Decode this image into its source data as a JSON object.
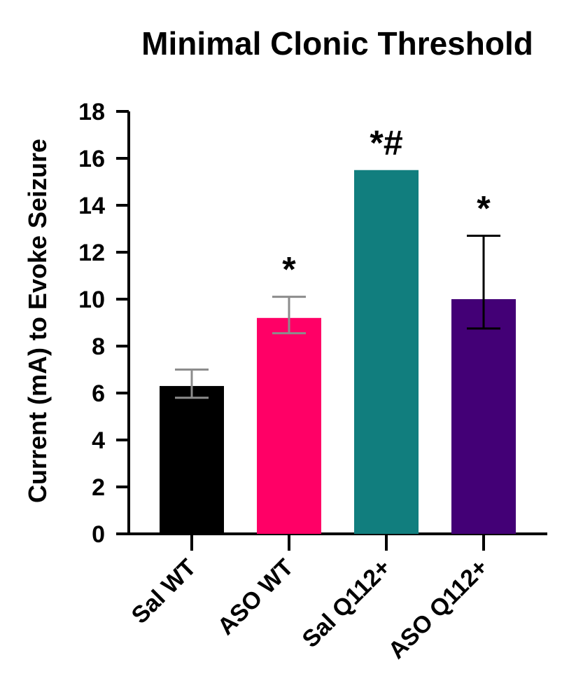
{
  "chart_data": {
    "type": "bar",
    "title": "Minimal Clonic Threshold",
    "xlabel": "",
    "ylabel": "Current (mA) to Evoke Seizure",
    "ylim": [
      0,
      18
    ],
    "yticks": [
      0,
      2,
      4,
      6,
      8,
      10,
      12,
      14,
      16,
      18
    ],
    "categories": [
      "Sal WT",
      "ASO WT",
      "Sal Q112+",
      "ASO Q112+"
    ],
    "values": [
      6.3,
      9.2,
      15.5,
      10.0
    ],
    "error_low": [
      5.8,
      8.55,
      null,
      8.75
    ],
    "error_high": [
      7.0,
      10.1,
      null,
      12.7
    ],
    "colors": [
      "#000000",
      "#ff0066",
      "#117e7e",
      "#430076"
    ],
    "error_colors": [
      "#8c8c8c",
      "#8c8c8c",
      "#000000",
      "#000000"
    ],
    "annotations": [
      "",
      "*",
      "*#",
      "*"
    ]
  }
}
